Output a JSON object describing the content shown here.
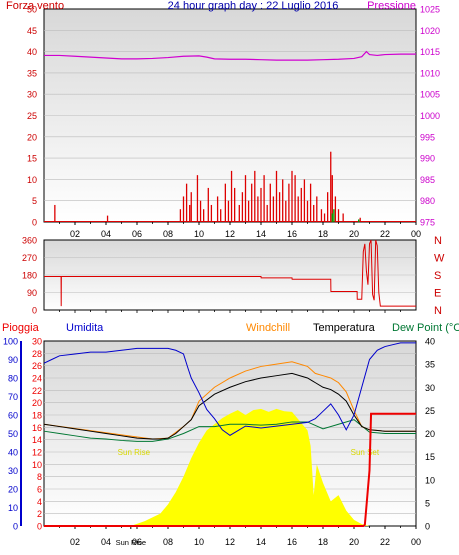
{
  "colors": {
    "wind": "#dd0000",
    "gust": "#00a000",
    "pressure": "#d000d0",
    "direction": "#dd0000",
    "humidity": "#0000cc",
    "windchill": "#ff8800",
    "temperature": "#000000",
    "dewpoint": "#007733",
    "rain": "#ee0000",
    "solar": "#ffff00",
    "sunlabel": "#d8d800",
    "frame": "#000000"
  },
  "chart_data": [
    {
      "type": "line",
      "title": "24 hour graph day : 22 Luglio 2016",
      "left_label": "Forza vento",
      "right_label": "Pressione",
      "y_left_ticks": [
        "0",
        "5",
        "10",
        "15",
        "20",
        "25",
        "30",
        "35",
        "40",
        "45",
        "50"
      ],
      "y_right_ticks": [
        "975",
        "980",
        "985",
        "990",
        "995",
        "1000",
        "1005",
        "1010",
        "1015",
        "1020",
        "1025"
      ],
      "ylim_left": [
        0,
        50
      ],
      "ylim_right": [
        975,
        1025
      ],
      "x_ticks": [
        "02",
        "04",
        "06",
        "08",
        "10",
        "12",
        "14",
        "16",
        "18",
        "20",
        "22",
        "00"
      ],
      "xlim": [
        0,
        24
      ],
      "series": [
        {
          "name": "Pressione",
          "axis": "right",
          "x": [
            0,
            1,
            2,
            3,
            4,
            5,
            6,
            7,
            8,
            9,
            10,
            10.5,
            11,
            12,
            13,
            14,
            15,
            16,
            17,
            18,
            19,
            20,
            20.5,
            20.8,
            21,
            21.5,
            22,
            23,
            24
          ],
          "y": [
            1014.1,
            1014.1,
            1013.9,
            1013.7,
            1013.5,
            1013.3,
            1013.3,
            1013.4,
            1013.6,
            1013.9,
            1014.0,
            1013.7,
            1013.3,
            1013.2,
            1013.2,
            1013.1,
            1013.0,
            1013.0,
            1013.0,
            1013.1,
            1013.2,
            1013.4,
            1013.8,
            1015.0,
            1014.3,
            1014.1,
            1014.3,
            1014.4,
            1014.4
          ]
        },
        {
          "name": "Forza vento",
          "axis": "left",
          "bars": [
            [
              0.7,
              4
            ],
            [
              4.1,
              1.5
            ],
            [
              8.8,
              3
            ],
            [
              9.0,
              6
            ],
            [
              9.2,
              9
            ],
            [
              9.4,
              4
            ],
            [
              9.5,
              7
            ],
            [
              9.9,
              11
            ],
            [
              10.1,
              5
            ],
            [
              10.3,
              3
            ],
            [
              10.6,
              8
            ],
            [
              10.8,
              4
            ],
            [
              11.2,
              6
            ],
            [
              11.4,
              3
            ],
            [
              11.7,
              9
            ],
            [
              11.9,
              5
            ],
            [
              12.1,
              12
            ],
            [
              12.3,
              8
            ],
            [
              12.6,
              4
            ],
            [
              12.8,
              7
            ],
            [
              13.0,
              11
            ],
            [
              13.2,
              5
            ],
            [
              13.4,
              9
            ],
            [
              13.6,
              12
            ],
            [
              13.8,
              6
            ],
            [
              14.0,
              8
            ],
            [
              14.2,
              11
            ],
            [
              14.4,
              4
            ],
            [
              14.6,
              9
            ],
            [
              14.8,
              6
            ],
            [
              15.0,
              12
            ],
            [
              15.2,
              7
            ],
            [
              15.4,
              10
            ],
            [
              15.6,
              5
            ],
            [
              15.8,
              9
            ],
            [
              16.0,
              12
            ],
            [
              16.2,
              11
            ],
            [
              16.4,
              6
            ],
            [
              16.6,
              8
            ],
            [
              16.8,
              10
            ],
            [
              17.0,
              5
            ],
            [
              17.2,
              9
            ],
            [
              17.4,
              4
            ],
            [
              17.6,
              6
            ],
            [
              17.9,
              3
            ],
            [
              18.1,
              2
            ],
            [
              18.3,
              7
            ],
            [
              18.5,
              16.5
            ],
            [
              18.6,
              11
            ],
            [
              18.8,
              6
            ],
            [
              19.0,
              3
            ],
            [
              19.3,
              2
            ],
            [
              20.4,
              1
            ]
          ],
          "gust_bars": [
            [
              18.6,
              2
            ],
            [
              18.7,
              3
            ],
            [
              20.3,
              0.6
            ]
          ]
        }
      ]
    },
    {
      "type": "line",
      "title": "",
      "y_left_ticks": [
        "0",
        "90",
        "180",
        "270",
        "360"
      ],
      "y_right_ticks": [
        "N",
        "E",
        "S",
        "W",
        "N"
      ],
      "ylim": [
        0,
        360
      ],
      "xlim": [
        0,
        24
      ],
      "series": [
        {
          "name": "",
          "x": [
            0,
            1.1,
            1.11,
            1.12,
            2,
            8,
            14,
            14.01,
            16,
            16.01,
            18.5,
            18.51,
            20.2,
            20.21,
            20.5,
            20.6,
            20.7,
            20.8,
            20.9,
            21.0,
            21.1,
            21.2,
            21.3,
            21.4,
            21.5,
            21.6,
            21.7,
            21.8,
            24
          ],
          "y": [
            172,
            172,
            20,
            172,
            172,
            172,
            172,
            165,
            165,
            158,
            158,
            95,
            95,
            55,
            55,
            300,
            340,
            200,
            130,
            340,
            360,
            80,
            50,
            360,
            330,
            90,
            20,
            20,
            20
          ]
        }
      ]
    },
    {
      "type": "line",
      "header_labels": [
        "Pioggia",
        "Umidita",
        "Windchill",
        "Temperatura",
        "Dew Point (°C"
      ],
      "y_left_ticks_rain": [
        "0",
        "2",
        "4",
        "6",
        "8",
        "10",
        "12",
        "14",
        "16",
        "18",
        "20",
        "22",
        "24",
        "26",
        "28",
        "30"
      ],
      "y_left_ticks_hum": [
        "0",
        "10",
        "20",
        "30",
        "40",
        "50",
        "60",
        "70",
        "80",
        "90",
        "100"
      ],
      "y_right_ticks": [
        "0",
        "5",
        "10",
        "15",
        "20",
        "25",
        "30",
        "35",
        "40"
      ],
      "ylim_rain": [
        0,
        30
      ],
      "ylim_humidity": [
        0,
        100
      ],
      "ylim_right": [
        0,
        40
      ],
      "x_ticks": [
        "02",
        "04",
        "Sun Rise",
        "06",
        "08",
        "10",
        "12",
        "14",
        "16",
        "18",
        "20",
        "22",
        "00"
      ],
      "xlim": [
        0,
        24
      ],
      "annotations": [
        {
          "text": "Sun Rise",
          "x": 5.8,
          "y": 11.5
        },
        {
          "text": "Sun Set",
          "x": 20.7,
          "y": 11.5
        }
      ],
      "series": [
        {
          "name": "Umidita",
          "x": [
            0,
            0.5,
            1,
            2,
            3,
            4,
            5,
            6,
            7,
            8,
            8.5,
            9,
            9.3,
            9.5,
            10,
            10.5,
            11,
            11.5,
            12,
            13,
            14,
            15,
            16,
            17,
            17.5,
            18,
            18.5,
            19,
            19.5,
            20,
            20.5,
            21,
            21.5,
            22,
            22.5,
            23,
            24
          ],
          "y": [
            88,
            90,
            92,
            93,
            94,
            94,
            95,
            96,
            96,
            96,
            95,
            93,
            85,
            80,
            72,
            63,
            58,
            52,
            49,
            54,
            53,
            54,
            55,
            56,
            58,
            62,
            66,
            60,
            52,
            60,
            75,
            90,
            95,
            97,
            98,
            99,
            99
          ]
        },
        {
          "name": "Temperatura",
          "x": [
            0,
            1,
            2,
            3,
            4,
            5,
            6,
            7,
            7.5,
            8,
            8.5,
            9,
            9.5,
            10,
            11,
            12,
            13,
            14,
            15,
            16,
            17,
            17.5,
            18,
            18.5,
            19,
            19.5,
            20,
            20.5,
            21,
            22,
            23,
            24
          ],
          "y": [
            22,
            21.5,
            21,
            20.5,
            20,
            19.5,
            19,
            18.8,
            18.8,
            19,
            20,
            21.5,
            23,
            26,
            28.5,
            30,
            31.2,
            32,
            32.5,
            33,
            32,
            31,
            30,
            29.5,
            28.5,
            27,
            24,
            21.5,
            20.8,
            20.5,
            20.5,
            20.5
          ]
        },
        {
          "name": "Windchill",
          "x": [
            0,
            7,
            8,
            9,
            9.5,
            10,
            11,
            12,
            13,
            14,
            15,
            16,
            17,
            17.5,
            18,
            18.5,
            19,
            19.5,
            20,
            20.5,
            21,
            22,
            23,
            24
          ],
          "y": [
            22,
            18.8,
            19,
            21.5,
            23,
            27,
            30,
            32,
            33.5,
            34.5,
            35,
            35.5,
            34.5,
            33,
            32.5,
            32,
            31,
            29,
            25,
            21.5,
            20.8,
            20.5,
            20.5,
            20.5
          ]
        },
        {
          "name": "Dew Point (°C",
          "x": [
            0,
            1,
            2,
            3,
            4,
            5,
            6,
            7,
            8,
            9,
            10,
            11,
            12,
            13,
            14,
            15,
            16,
            17,
            18,
            19,
            20,
            21,
            22,
            23,
            24
          ],
          "y": [
            20.5,
            20,
            19.5,
            19,
            18.8,
            18.5,
            18.3,
            18.3,
            18.8,
            20,
            21.5,
            21.5,
            22,
            22,
            21.8,
            22,
            22.5,
            22.5,
            21,
            22,
            23,
            20.3,
            20,
            20,
            20
          ]
        },
        {
          "name": "Pioggia",
          "x": [
            0,
            20.6,
            20.7,
            21.0,
            21.1,
            21.5,
            22,
            23,
            24
          ],
          "y": [
            0,
            0,
            0.2,
            9,
            18.2,
            18.2,
            18.2,
            18.2,
            18.2
          ]
        },
        {
          "name": "Solar",
          "x": [
            0,
            5.6,
            6.5,
            7.5,
            8,
            8.5,
            9,
            9.5,
            10,
            10.5,
            11,
            11.5,
            12,
            12.5,
            13,
            13.5,
            14,
            14.5,
            15,
            15.5,
            16,
            16.5,
            17,
            17.2,
            17.4,
            17.6,
            18,
            18.5,
            19,
            19.5,
            20,
            20.5,
            21,
            24
          ],
          "y": [
            0,
            0,
            0.8,
            2,
            3.5,
            5.5,
            8,
            11,
            13.5,
            15.5,
            16.5,
            17.5,
            18.2,
            18.8,
            18,
            18.8,
            19,
            18.5,
            19,
            18.6,
            18.5,
            17,
            15.5,
            13,
            5,
            10,
            7,
            4,
            5,
            2.5,
            1,
            0.3,
            0,
            0
          ]
        }
      ]
    }
  ]
}
